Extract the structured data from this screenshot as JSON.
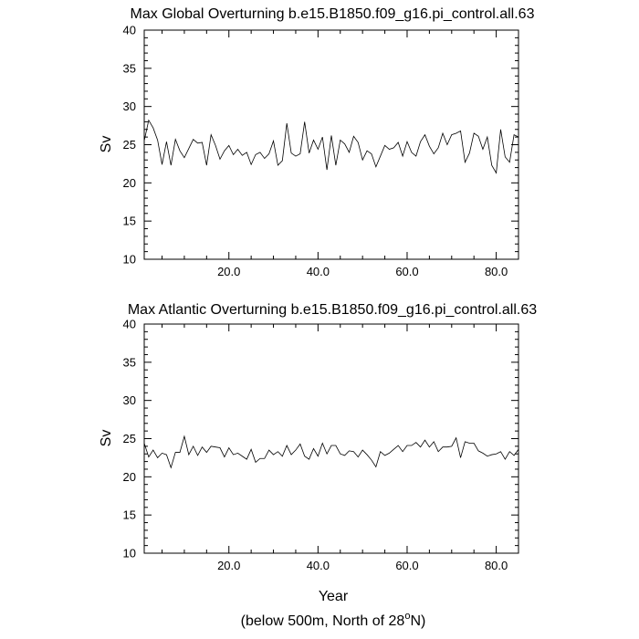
{
  "footer": {
    "pre": "(below 500m, North of 28",
    "sup": "o",
    "post": "N)"
  },
  "chart_data": [
    {
      "type": "line",
      "title": "Max Global Overturning b.e15.B1850.f09_g16.pi_control.all.63",
      "xlabel": "",
      "ylabel": "Sv",
      "xlim": [
        1,
        85
      ],
      "ylim": [
        10,
        40
      ],
      "xticks": [
        20,
        40,
        60,
        80
      ],
      "xticklabels": [
        "20.0",
        "40.0",
        "60.0",
        "80.0"
      ],
      "yticks": [
        10,
        15,
        20,
        25,
        30,
        35,
        40
      ],
      "yticklabels": [
        "10",
        "15",
        "20",
        "25",
        "30",
        "35",
        "40"
      ],
      "grid": false,
      "series": [
        {
          "values": [
            25.5,
            28.2,
            27.2,
            25.6,
            22.4,
            25.4,
            22.3,
            25.7,
            24.2,
            23.3,
            24.5,
            25.7,
            25.2,
            25.3,
            22.3,
            26.3,
            24.9,
            23.1,
            24.2,
            24.9,
            23.7,
            24.4,
            23.6,
            24.0,
            22.4,
            23.7,
            24.0,
            23.2,
            23.8,
            25.5,
            22.3,
            22.9,
            27.8,
            23.9,
            23.5,
            23.8,
            28.0,
            23.9,
            25.6,
            24.4,
            26.0,
            21.7,
            26.2,
            22.3,
            25.6,
            25.1,
            24.0,
            26.1,
            25.3,
            23.0,
            24.2,
            23.8,
            22.1,
            23.5,
            24.9,
            24.4,
            24.6,
            25.3,
            23.5,
            25.4,
            24.0,
            23.5,
            25.4,
            26.3,
            24.8,
            23.8,
            24.6,
            26.5,
            25.0,
            26.3,
            26.5,
            26.8,
            22.7,
            23.9,
            26.5,
            26.1,
            24.4,
            26.0,
            22.3,
            21.3,
            27.0,
            23.4,
            22.7,
            26.3,
            26.0
          ]
        }
      ]
    },
    {
      "type": "line",
      "title": "Max Atlantic Overturning b.e15.B1850.f09_g16.pi_control.all.63",
      "xlabel": "Year",
      "ylabel": "Sv",
      "xlim": [
        1,
        85
      ],
      "ylim": [
        10,
        40
      ],
      "xticks": [
        20,
        40,
        60,
        80
      ],
      "xticklabels": [
        "20.0",
        "40.0",
        "60.0",
        "80.0"
      ],
      "yticks": [
        10,
        15,
        20,
        25,
        30,
        35,
        40
      ],
      "yticklabels": [
        "10",
        "15",
        "20",
        "25",
        "30",
        "35",
        "40"
      ],
      "grid": false,
      "series": [
        {
          "values": [
            24.4,
            22.6,
            23.5,
            22.5,
            23.1,
            22.9,
            21.2,
            23.2,
            23.2,
            25.3,
            22.9,
            24.0,
            22.8,
            23.9,
            23.2,
            24.0,
            23.9,
            23.8,
            22.6,
            23.8,
            22.9,
            23.1,
            22.7,
            22.3,
            23.6,
            21.9,
            22.4,
            22.4,
            23.5,
            22.9,
            23.3,
            22.7,
            24.1,
            22.9,
            23.5,
            24.3,
            22.7,
            22.3,
            23.7,
            22.7,
            24.4,
            23.0,
            24.1,
            24.1,
            23.0,
            22.8,
            23.4,
            23.3,
            22.6,
            23.5,
            22.9,
            22.2,
            21.3,
            23.3,
            22.8,
            23.1,
            23.6,
            24.1,
            23.3,
            24.1,
            24.1,
            24.5,
            23.9,
            24.8,
            23.9,
            24.6,
            23.3,
            23.9,
            23.9,
            24.0,
            25.1,
            22.5,
            24.6,
            24.4,
            24.4,
            23.4,
            23.1,
            22.7,
            22.9,
            23.0,
            23.3,
            22.3,
            23.3,
            22.8,
            23.6
          ]
        }
      ]
    }
  ]
}
